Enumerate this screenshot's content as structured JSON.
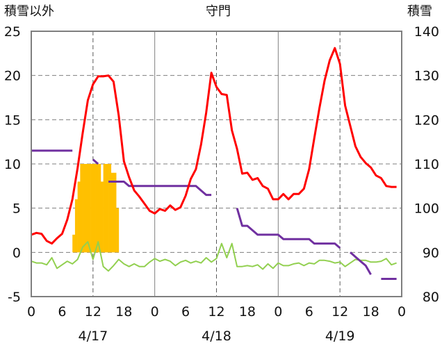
{
  "chart_data": {
    "type": "line",
    "title": "守門",
    "ylabel_left": "積雪以外",
    "ylabel_right": "積雪",
    "ylim_left": [
      -5,
      25
    ],
    "ylim_right": [
      80,
      140
    ],
    "yticks_left": [
      "-5",
      "0",
      "5",
      "10",
      "15",
      "20",
      "25"
    ],
    "yticks_right": [
      "80",
      "90",
      "100",
      "110",
      "120",
      "130",
      "140"
    ],
    "xlim": [
      0,
      72
    ],
    "xticks": [
      "0",
      "6",
      "12",
      "18",
      "0",
      "6",
      "12",
      "18",
      "0",
      "6",
      "12",
      "18",
      "0"
    ],
    "date_labels": [
      "4/17",
      "4/18",
      "4/19"
    ],
    "grid": true,
    "colors": {
      "temperature": "#ff0000",
      "snow_depth": "#7030a0",
      "sunshine": "#ffc000",
      "humidity": "#92d050"
    },
    "series": [
      {
        "key": "temperature",
        "axis": "left",
        "type": "line",
        "x": [
          0,
          1,
          2,
          3,
          4,
          5,
          6,
          7,
          8,
          9,
          10,
          11,
          12,
          13,
          14,
          15,
          16,
          17,
          18,
          19,
          20,
          21,
          22,
          23,
          24,
          25,
          26,
          27,
          28,
          29,
          30,
          31,
          32,
          33,
          34,
          35,
          36,
          37,
          38,
          39,
          40,
          41,
          42,
          43,
          44,
          45,
          46,
          47,
          48,
          49,
          50,
          51,
          52,
          53,
          54,
          55,
          56,
          57,
          58,
          59,
          60,
          61,
          62,
          63,
          64,
          65,
          66,
          67,
          68,
          69,
          70,
          71
        ],
        "values": [
          2.0,
          2.2,
          2.1,
          1.3,
          1.0,
          1.6,
          2.1,
          3.7,
          6.0,
          9.5,
          13.5,
          17.2,
          19.0,
          19.9,
          19.9,
          20.0,
          19.3,
          15.5,
          10.3,
          8.5,
          7.0,
          6.3,
          5.5,
          4.7,
          4.4,
          4.9,
          4.7,
          5.3,
          4.8,
          5.1,
          6.4,
          8.3,
          9.4,
          12.2,
          15.8,
          20.3,
          18.7,
          17.9,
          17.8,
          13.8,
          11.7,
          8.9,
          9.0,
          8.2,
          8.4,
          7.5,
          7.2,
          6.0,
          6.0,
          6.6,
          6.0,
          6.6,
          6.6,
          7.2,
          9.4,
          12.9,
          16.3,
          19.4,
          21.7,
          23.1,
          21.3,
          16.6,
          14.3,
          12.0,
          10.8,
          10.1,
          9.6,
          8.7,
          8.4,
          7.5,
          7.4,
          7.4
        ]
      },
      {
        "key": "snow_depth",
        "axis": "right",
        "type": "step",
        "x": [
          0,
          1,
          2,
          3,
          4,
          5,
          6,
          7,
          8,
          9,
          10,
          11,
          12,
          13,
          14,
          15,
          16,
          17,
          18,
          19,
          20,
          21,
          22,
          23,
          24,
          25,
          26,
          27,
          28,
          29,
          30,
          31,
          32,
          33,
          34,
          35,
          36,
          37,
          38,
          39,
          40,
          41,
          42,
          43,
          44,
          45,
          46,
          47,
          48,
          49,
          50,
          51,
          52,
          53,
          54,
          55,
          56,
          57,
          58,
          59,
          60,
          61,
          62,
          63,
          64,
          65,
          66,
          67,
          68,
          69,
          70,
          71
        ],
        "values": [
          113,
          113,
          113,
          113,
          113,
          113,
          113,
          113,
          113,
          null,
          null,
          null,
          111,
          110,
          null,
          106,
          106,
          106,
          106,
          105,
          105,
          105,
          105,
          105,
          105,
          105,
          105,
          105,
          105,
          105,
          105,
          105,
          105,
          104,
          103,
          103,
          null,
          null,
          null,
          null,
          100,
          96,
          96,
          95,
          94,
          94,
          94,
          94,
          94,
          93,
          93,
          93,
          93,
          93,
          93,
          92,
          92,
          92,
          92,
          92,
          91,
          null,
          90,
          89,
          88,
          87,
          85,
          null,
          84,
          84,
          84,
          84
        ]
      },
      {
        "key": "sunshine",
        "axis": "left",
        "type": "bar",
        "x": [
          8,
          8.5,
          9,
          9.5,
          10,
          10.5,
          11,
          11.5,
          12,
          12.5,
          13,
          13.5,
          14,
          14.5,
          15,
          15.5,
          16,
          16.5,
          17,
          17.5,
          18,
          18.5,
          19
        ],
        "values": [
          2,
          6,
          8,
          10,
          10,
          10,
          10,
          10,
          10,
          10,
          10,
          8,
          10,
          10,
          10,
          9,
          9,
          5,
          null,
          null,
          null,
          null,
          null
        ]
      },
      {
        "key": "humidity",
        "axis": "left",
        "type": "line",
        "x": [
          0,
          1,
          2,
          3,
          4,
          5,
          6,
          7,
          8,
          9,
          10,
          11,
          12,
          13,
          14,
          15,
          16,
          17,
          18,
          19,
          20,
          21,
          22,
          23,
          24,
          25,
          26,
          27,
          28,
          29,
          30,
          31,
          32,
          33,
          34,
          35,
          36,
          37,
          38,
          39,
          40,
          41,
          42,
          43,
          44,
          45,
          46,
          47,
          48,
          49,
          50,
          51,
          52,
          53,
          54,
          55,
          56,
          57,
          58,
          59,
          60,
          61,
          62,
          63,
          64,
          65,
          66,
          67,
          68,
          69,
          70,
          71
        ],
        "values": [
          -1.0,
          -1.2,
          -1.2,
          -1.4,
          -0.6,
          -1.8,
          -1.4,
          -1.0,
          -1.3,
          -0.8,
          0.6,
          1.2,
          -0.8,
          1.2,
          -1.6,
          -2.1,
          -1.5,
          -0.8,
          -1.3,
          -1.6,
          -1.3,
          -1.6,
          -1.6,
          -1.1,
          -0.7,
          -1.0,
          -0.8,
          -1.0,
          -1.5,
          -1.1,
          -0.9,
          -1.2,
          -1.0,
          -1.2,
          -0.6,
          -1.1,
          -0.7,
          1.0,
          -0.6,
          1.0,
          -1.6,
          -1.6,
          -1.5,
          -1.6,
          -1.4,
          -1.9,
          -1.3,
          -1.8,
          -1.2,
          -1.5,
          -1.5,
          -1.3,
          -1.2,
          -1.5,
          -1.2,
          -1.3,
          -0.9,
          -0.9,
          -1.0,
          -1.2,
          -1.1,
          -1.6,
          -1.2,
          -0.8,
          -0.9,
          -0.9,
          -1.1,
          -1.1,
          -1.0,
          -0.7,
          -1.4,
          -1.2
        ]
      }
    ]
  }
}
